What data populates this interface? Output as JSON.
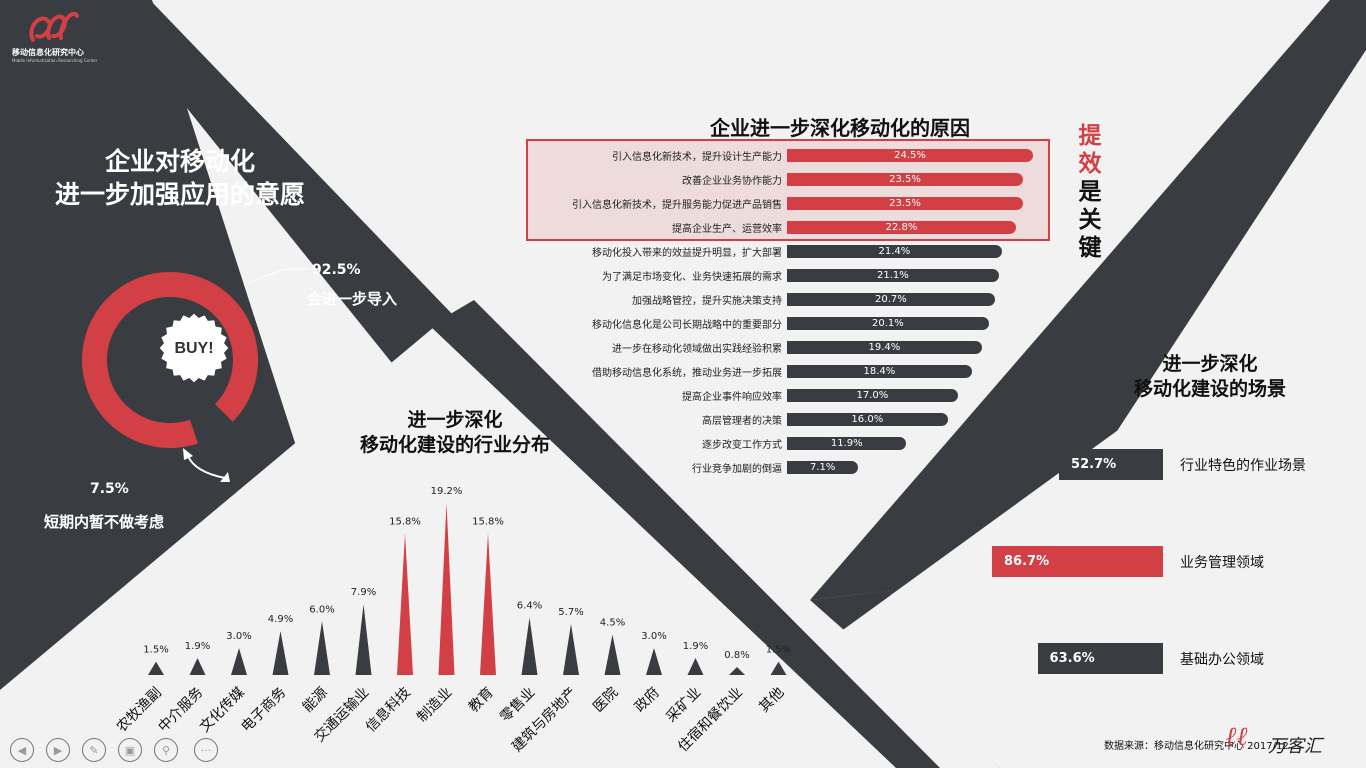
{
  "brand": {
    "name": "移动信息化研究中心",
    "subtitle": "Mobile Informatization Researching Center",
    "watermark": "万客汇"
  },
  "left_panel": {
    "title_line1": "企业对移动化",
    "title_line2": "进一步加强应用的意愿",
    "badge": "BUY!",
    "main_pct": "92.5%",
    "main_label": "会进一步导入",
    "minor_pct": "7.5%",
    "minor_label": "短期内暂不做考虑"
  },
  "reasons_title": "企业进一步深化移动化的原因",
  "key_text": [
    "提",
    "效",
    "是",
    "关",
    "键"
  ],
  "industry_title_line1": "进一步深化",
  "industry_title_line2": "移动化建设的行业分布",
  "scene_title_line1": "进一步深化",
  "scene_title_line2": "移动化建设的场景",
  "source": "数据来源：移动信息化研究中心 2017/12",
  "colors": {
    "accent": "#d23f44",
    "dark": "#393d41",
    "light": "#f2f2f2"
  },
  "icons": [
    "prev-icon",
    "next-icon",
    "pen-icon",
    "layout-icon",
    "zoom-icon",
    "more-icon"
  ],
  "chart_data": [
    {
      "type": "pie",
      "title": "企业对移动化进一步加强应用的意愿",
      "categories": [
        "会进一步导入",
        "短期内暂不做考虑"
      ],
      "values": [
        92.5,
        7.5
      ]
    },
    {
      "type": "bar",
      "title": "企业进一步深化移动化的原因",
      "categories": [
        "引入信息化新技术，提升设计生产能力",
        "改善企业业务协作能力",
        "引入信息化新技术，提升服务能力促进产品销售",
        "提高企业生产、运营效率",
        "移动化投入带来的效益提升明显，扩大部署",
        "为了满足市场变化、业务快速拓展的需求",
        "加强战略管控，提升实施决策支持",
        "移动化信息化是公司长期战略中的重要部分",
        "进一步在移动化领域做出实践经验积累",
        "借助移动信息化系统，推动业务进一步拓展",
        "提高企业事件响应效率",
        "高层管理者的决策",
        "逐步改变工作方式",
        "行业竞争加剧的倒逼"
      ],
      "values": [
        24.5,
        23.5,
        23.5,
        22.8,
        21.4,
        21.1,
        20.7,
        20.1,
        19.4,
        18.4,
        17.0,
        16.0,
        11.9,
        7.1
      ],
      "labels": [
        "24.5%",
        "23.5%",
        "23.5%",
        "22.8%",
        "21.4%",
        "21.1%",
        "20.7%",
        "20.1%",
        "19.4%",
        "18.4%",
        "17.0%",
        "16.0%",
        "11.9%",
        "7.1%"
      ],
      "highlight_count": 4
    },
    {
      "type": "bar",
      "title": "进一步深化移动化建设的行业分布",
      "categories": [
        "农牧渔副",
        "中介服务",
        "文化传媒",
        "电子商务",
        "能源",
        "交通运输业",
        "信息科技",
        "制造业",
        "教育",
        "零售业",
        "建筑与房地产",
        "医院",
        "政府",
        "采矿业",
        "住宿和餐饮业",
        "其他"
      ],
      "values": [
        1.5,
        1.9,
        3.0,
        4.9,
        6.0,
        7.9,
        15.8,
        19.2,
        15.8,
        6.4,
        5.7,
        4.5,
        3.0,
        1.9,
        0.8,
        1.5
      ],
      "labels": [
        "1.5%",
        "1.9%",
        "3.0%",
        "4.9%",
        "6.0%",
        "7.9%",
        "15.8%",
        "19.2%",
        "15.8%",
        "6.4%",
        "5.7%",
        "4.5%",
        "3.0%",
        "1.9%",
        "0.8%",
        "1.5%"
      ],
      "highlight": [
        "信息科技",
        "制造业",
        "教育"
      ]
    },
    {
      "type": "bar",
      "title": "进一步深化移动化建设的场景",
      "categories": [
        "行业特色的作业场景",
        "业务管理领域",
        "基础办公领域"
      ],
      "values": [
        52.7,
        86.7,
        63.6
      ],
      "labels": [
        "52.7%",
        "86.7%",
        "63.6%"
      ],
      "highlight": [
        "业务管理领域"
      ]
    }
  ]
}
